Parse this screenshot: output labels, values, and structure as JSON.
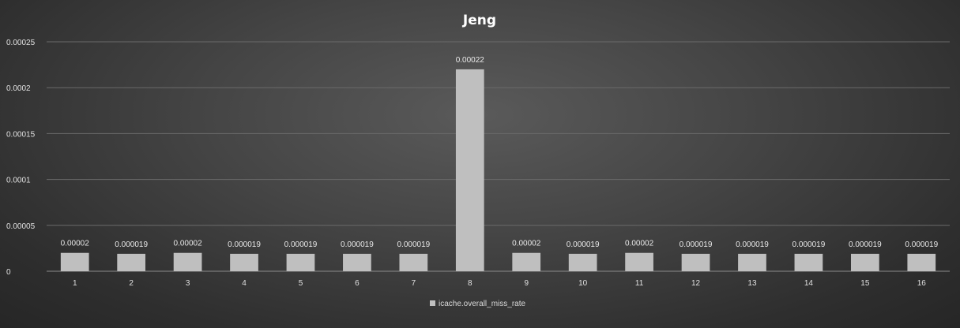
{
  "chart_data": {
    "type": "bar",
    "title": "Jeng",
    "xlabel": "",
    "ylabel": "",
    "categories": [
      "1",
      "2",
      "3",
      "4",
      "5",
      "6",
      "7",
      "8",
      "9",
      "10",
      "11",
      "12",
      "13",
      "14",
      "15",
      "16"
    ],
    "series": [
      {
        "name": "icache.overall_miss_rate",
        "values": [
          2e-05,
          1.9e-05,
          2e-05,
          1.9e-05,
          1.9e-05,
          1.9e-05,
          1.9e-05,
          0.00022,
          2e-05,
          1.9e-05,
          2e-05,
          1.9e-05,
          1.9e-05,
          1.9e-05,
          1.9e-05,
          1.9e-05
        ],
        "labels": [
          "0.00002",
          "0.000019",
          "0.00002",
          "0.000019",
          "0.000019",
          "0.000019",
          "0.000019",
          "0.00022",
          "0.00002",
          "0.000019",
          "0.00002",
          "0.000019",
          "0.000019",
          "0.000019",
          "0.000019",
          "0.000019"
        ],
        "color": "#bfbfbf"
      }
    ],
    "ylim": [
      0,
      0.00025
    ],
    "yticks": [
      0,
      5e-05,
      0.0001,
      0.00015,
      0.0002,
      0.00025
    ],
    "ytick_labels": [
      "0",
      "0.00005",
      "0.0001",
      "0.00015",
      "0.0002",
      "0.00025"
    ],
    "grid": true,
    "legend_position": "bottom",
    "colors": {
      "background": "#3c3c3c",
      "bar": "#bfbfbf",
      "grid": "#6a6a6a",
      "text": "#e0e0e0"
    }
  }
}
